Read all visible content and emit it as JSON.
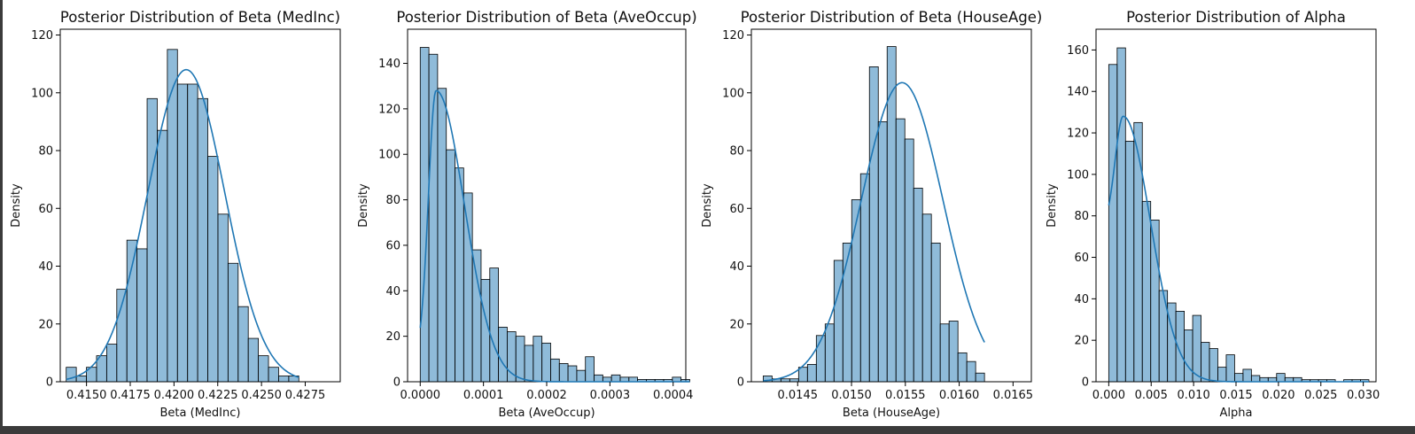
{
  "chart_data": [
    {
      "type": "histogram",
      "title": "Posterior Distribution of Beta (MedInc)",
      "xlabel": "Beta (MedInc)",
      "ylabel": "Density",
      "xlim": [
        0.4135,
        0.4295
      ],
      "ylim": [
        0,
        122
      ],
      "xticks": [
        0.415,
        0.4175,
        0.42,
        0.4225,
        0.425,
        0.4275
      ],
      "xtick_labels": [
        "0.4150",
        "0.4175",
        "0.4200",
        "0.4225",
        "0.4250",
        "0.4275"
      ],
      "yticks": [
        0,
        20,
        40,
        60,
        80,
        100,
        120
      ],
      "bin_start": 0.41384,
      "bin_width": 0.000578,
      "values": [
        5,
        2,
        5,
        9,
        13,
        32,
        49,
        46,
        98,
        87,
        115,
        103,
        103,
        98,
        78,
        58,
        41,
        26,
        15,
        9,
        5,
        2,
        2
      ],
      "kde": {
        "mean": 0.4207,
        "sd": 0.0022,
        "scale": 108
      },
      "color": "#1f77b4"
    },
    {
      "type": "histogram",
      "title": "Posterior Distribution of Beta (AveOccup)",
      "xlabel": "Beta (AveOccup)",
      "ylabel": "Density",
      "xlim": [
        -2e-05,
        0.00042
      ],
      "ylim": [
        0,
        155
      ],
      "xticks": [
        0.0,
        0.0001,
        0.0002,
        0.0003,
        0.0004
      ],
      "xtick_labels": [
        "0.0000",
        "0.0001",
        "0.0002",
        "0.0003",
        "0.0004"
      ],
      "yticks": [
        0,
        20,
        40,
        60,
        80,
        100,
        120,
        140
      ],
      "bin_start": 0.0,
      "bin_width": 1.375e-05,
      "values": [
        147,
        144,
        129,
        102,
        94,
        83,
        58,
        45,
        50,
        24,
        22,
        20,
        16,
        20,
        17,
        10,
        8,
        7,
        5,
        11,
        3,
        2,
        3,
        2,
        2,
        1,
        1,
        1,
        1,
        2,
        1
      ],
      "kde": {
        "peak": 2.5e-05,
        "sd_left": 1.2e-05,
        "sd_right": 4.5e-05,
        "scale": 128,
        "floor": 0.08
      },
      "color": "#1f77b4"
    },
    {
      "type": "histogram",
      "title": "Posterior Distribution of Beta (HouseAge)",
      "xlabel": "Beta (HouseAge)",
      "ylabel": "Density",
      "xlim": [
        0.01407,
        0.01667
      ],
      "ylim": [
        0,
        122
      ],
      "xticks": [
        0.0145,
        0.015,
        0.0155,
        0.016,
        0.0165
      ],
      "xtick_labels": [
        "0.0145",
        "0.0150",
        "0.0155",
        "0.0160",
        "0.0165"
      ],
      "yticks": [
        0,
        20,
        40,
        60,
        80,
        100,
        120
      ],
      "bin_start": 0.01418,
      "bin_width": 8.22e-05,
      "values": [
        2,
        1,
        1,
        1,
        5,
        6,
        16,
        20,
        42,
        48,
        63,
        72,
        109,
        90,
        116,
        91,
        84,
        67,
        58,
        48,
        20,
        21,
        10,
        7,
        3
      ],
      "kde": {
        "mean": 0.01547,
        "sd": 0.00038,
        "scale": 103.5
      },
      "color": "#1f77b4"
    },
    {
      "type": "histogram",
      "title": "Posterior Distribution of Alpha",
      "xlabel": "Alpha",
      "ylabel": "Density",
      "xlim": [
        -0.0015,
        0.0315
      ],
      "ylim": [
        0,
        170
      ],
      "xticks": [
        0.0,
        0.005,
        0.01,
        0.015,
        0.02,
        0.025,
        0.03
      ],
      "xtick_labels": [
        "0.000",
        "0.005",
        "0.010",
        "0.015",
        "0.020",
        "0.025",
        "0.030"
      ],
      "yticks": [
        0,
        20,
        40,
        60,
        80,
        100,
        120,
        140,
        160
      ],
      "bin_start": 0.0,
      "bin_width": 0.000989,
      "values": [
        153,
        161,
        116,
        125,
        87,
        78,
        44,
        38,
        34,
        25,
        32,
        19,
        16,
        7,
        13,
        4,
        6,
        3,
        2,
        2,
        4,
        2,
        2,
        1,
        1,
        1,
        1,
        0,
        1,
        1,
        1
      ],
      "kde": {
        "peak": 0.0017,
        "sd_left": 0.00095,
        "sd_right": 0.0032,
        "scale": 128,
        "floor": 0.58
      },
      "color": "#1f77b4"
    }
  ]
}
